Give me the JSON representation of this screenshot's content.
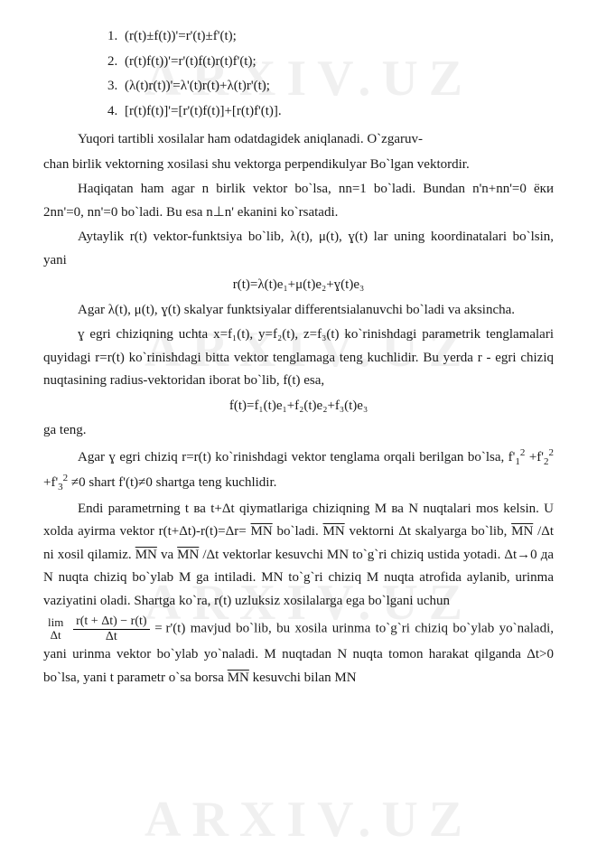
{
  "watermark_text": "ARXIV.UZ",
  "list_items": [
    "(r(t)±f(t))'=r'(t)±f'(t);",
    "(r(t)f(t))'=r'(t)f(t)r(t)f'(t);",
    "(λ(t)r(t))'=λ'(t)r(t)+λ(t)r'(t);",
    "[r(t)f(t)]'=[r'(t)f(t)]+[r(t)f'(t)]."
  ],
  "p1": "Yuqori tartibli xosilalar ham odatdagidek aniqlanadi. O`zgaruv-",
  "p2": "chan birlik vektorning xosilasi shu vektorga perpendikulyar Bo`lgan vektordir.",
  "p3": "Haqiqatan ham agar n birlik vektor bo`lsa, nn=1 bo`ladi. Bundan n'n+nn'=0 ёки 2nn'=0, nn'=0 bo`ladi. Bu esa n⊥n' ekanini ko`rsatadi.",
  "p4": "Aytaylik r(t) vektor-funktsiya bo`lib, λ(t), μ(t), ɣ(t) lar uning koordinatalari bo`lsin, yani",
  "eq1": "r(t)=λ(t)e₁+μ(t)e₂+ɣ(t)e₃",
  "p5": "Agar λ(t), μ(t), ɣ(t) skalyar funktsiyalar differentsialanuvchi bo`ladi va aksincha.",
  "p6": "ɣ egri chiziqning uchta x=f₁(t), y=f₂(t), z=f₃(t) ko`rinishdagi parametrik tenglamalari quyidagi r=r(t) ko`rinishdagi bitta vektor tenglamaga teng kuchlidir. Bu yerda r - egri chiziq nuqtasining radius-vektoridan iborat bo`lib, f(t) esa,",
  "eq2": "f(t)=f₁(t)e₁+f₂(t)e₂+f₃(t)e₃",
  "p7": "ga teng.",
  "p8_a": "Agar ɣ egri chiziq r=r(t) ko`rinishdagi vektor tenglama orqali berilgan bo`lsa, f'",
  "p8_b": "+f'",
  "p8_c": "+f'",
  "p8_d": "≠0 shart f'(t)≠0 shartga teng kuchlidir.",
  "p9_a": "Endi parametrning t ва t+Δt qiymatlariga chiziqning M ва N nuqtalari mos kelsin. U xolda ayirma vektor r(t+Δt)-r(t)=Δr=",
  "p9_b": " bo`ladi. ",
  "p9_c": " vektorni Δt skalyarga bo`lib, ",
  "p9_d": "/Δt ni xosil qilamiz. ",
  "p9_e": " va ",
  "p9_f": "/Δt vektorlar kesuvchi MN to`g`ri chiziq ustida yotadi. Δt→0 да N nuqta chiziq bo`ylab M ga intiladi. MN to`g`ri chiziq M nuqta atrofida aylanib, urinma vaziyatini oladi. Shartga ko`ra, r(t) uzluksiz xosilalarga ega bo`lgani uchun",
  "lim_prefix": "lim",
  "lim_under": "Δt",
  "frac_num": "r(t + Δt) − r(t)",
  "frac_den": "Δt",
  "lim_rhs": "= r'(t)",
  "p10": " mavjud bo`lib, bu xosila urinma to`g`ri chiziq bo`ylab yo`naladi, yani urinma vektor bo`ylab yo`naladi. M nuqtadan N nuqta tomon harakat qilganda Δt>0 bo`lsa, yani t parametr o`sa borsa ",
  "p10_b": " kesuvchi bilan MN",
  "mn_over": "MN"
}
